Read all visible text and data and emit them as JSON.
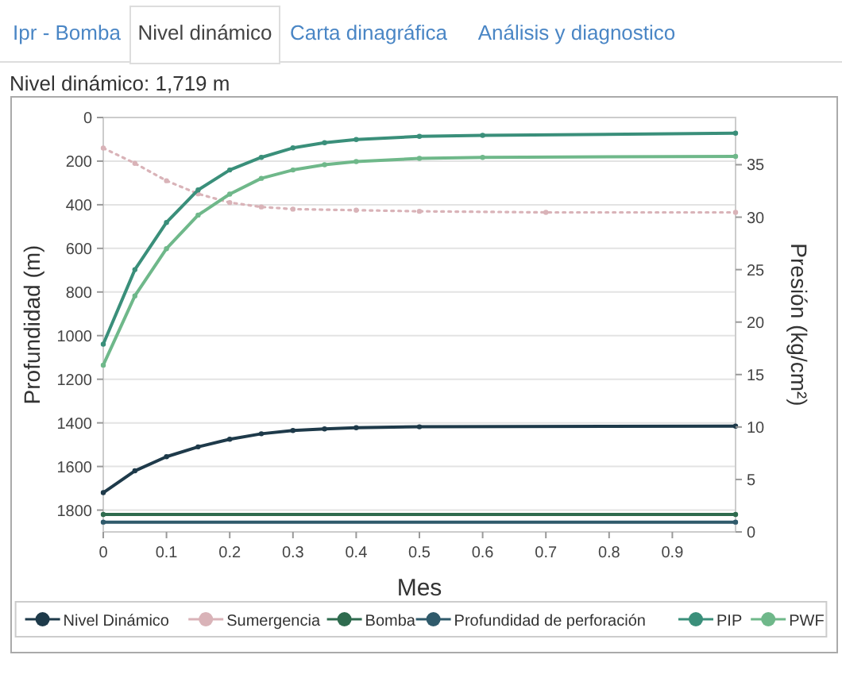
{
  "chart_data": {
    "type": "line",
    "title": "Nivel dinámico: 1,719 m",
    "annotations": [
      "Ipr - Bomba",
      "Nivel dinámico",
      "Carta dinagráfica",
      "Análisis y diagnostico"
    ],
    "xlabel": "Mes",
    "ylabel": "Profundidad (m)",
    "y2label": "Presión (kg/cm²)",
    "xlim": [
      0,
      1
    ],
    "xticks": [
      0,
      0.1,
      0.2,
      0.3,
      0.4,
      0.5,
      0.6,
      0.7,
      0.8,
      0.9
    ],
    "ylim": [
      1900,
      0
    ],
    "yticks": [
      0,
      200,
      400,
      600,
      800,
      1000,
      1200,
      1400,
      1600,
      1800
    ],
    "y2lim": [
      0,
      39.5
    ],
    "y2ticks": [
      0,
      5,
      10,
      15,
      20,
      25,
      30,
      35
    ],
    "grid": "y",
    "legend": "bottom",
    "marker": "circle",
    "series": [
      {
        "name": "Nivel Dinámico",
        "color": "#1e3a4a",
        "x": [
          0,
          0.05,
          0.1,
          0.15,
          0.2,
          0.25,
          0.3,
          0.35,
          0.4,
          0.5,
          1
        ],
        "values": [
          1720,
          1620,
          1555,
          1510,
          1475,
          1450,
          1435,
          1428,
          1422,
          1418,
          1415
        ]
      },
      {
        "name": "Sumergencia",
        "color": "#d9b3b8",
        "line_style": "dotted",
        "x": [
          0,
          0.05,
          0.1,
          0.15,
          0.2,
          0.25,
          0.3,
          0.4,
          0.5,
          0.7,
          1
        ],
        "values": [
          140,
          210,
          290,
          350,
          390,
          410,
          420,
          425,
          430,
          435,
          435
        ]
      },
      {
        "name": "Bomba",
        "color": "#2e6b4e",
        "x": [
          0,
          1
        ],
        "values": [
          1820,
          1820
        ]
      },
      {
        "name": "Profundidad de perforación",
        "color": "#2f5a6b",
        "x": [
          0,
          1
        ],
        "values": [
          1855,
          1855
        ]
      },
      {
        "name": "PIP",
        "color": "#3a8f7a",
        "axis": "y2",
        "x": [
          0,
          0.05,
          0.1,
          0.15,
          0.2,
          0.25,
          0.3,
          0.35,
          0.4,
          0.5,
          0.6,
          1
        ],
        "values": [
          17.9,
          25.0,
          29.5,
          32.6,
          34.5,
          35.7,
          36.6,
          37.1,
          37.4,
          37.7,
          37.8,
          38.0
        ]
      },
      {
        "name": "PWF",
        "color": "#6fb88a",
        "axis": "y2",
        "x": [
          0,
          0.05,
          0.1,
          0.15,
          0.2,
          0.25,
          0.3,
          0.35,
          0.4,
          0.5,
          0.6,
          1
        ],
        "values": [
          15.9,
          22.5,
          27.0,
          30.2,
          32.2,
          33.7,
          34.5,
          35.0,
          35.3,
          35.6,
          35.7,
          35.8
        ]
      }
    ]
  }
}
